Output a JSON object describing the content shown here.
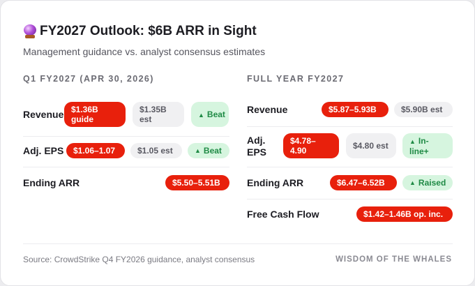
{
  "title": "FY2027 Outlook: $6B ARR in Sight",
  "subtitle": "Management guidance vs. analyst consensus estimates",
  "q1": {
    "heading": "Q1 FY2027 (APR 30, 2026)",
    "revenue": {
      "label": "Revenue",
      "guide": "$1.36B guide",
      "est": "$1.35B est",
      "status": "Beat"
    },
    "eps": {
      "label": "Adj. EPS",
      "guide": "$1.06–1.07",
      "est": "$1.05 est",
      "status": "Beat"
    },
    "arr": {
      "label": "Ending ARR",
      "guide": "$5.50–5.51B"
    }
  },
  "fy": {
    "heading": "FULL YEAR FY2027",
    "revenue": {
      "label": "Revenue",
      "guide": "$5.87–5.93B",
      "est": "$5.90B est"
    },
    "eps": {
      "label": "Adj. EPS",
      "guide": "$4.78–4.90",
      "est": "$4.80 est",
      "status": "In-line+"
    },
    "arr": {
      "label": "Ending ARR",
      "guide": "$6.47–6.52B",
      "status": "Raised"
    },
    "fcf": {
      "label": "Free Cash Flow",
      "guide": "$1.42–1.46B op. inc."
    }
  },
  "footer": {
    "source": "Source: CrowdStrike Q4 FY2026 guidance, analyst consensus",
    "brand": "WISDOM OF THE WHALES"
  },
  "icons": {
    "title": "crystal-ball-icon",
    "status": "triangle-up-icon"
  },
  "colors": {
    "guide": "#e8200c",
    "est": "#f0f0f2",
    "positive": "#1f8a45",
    "positive_bg": "#d6f5df"
  }
}
